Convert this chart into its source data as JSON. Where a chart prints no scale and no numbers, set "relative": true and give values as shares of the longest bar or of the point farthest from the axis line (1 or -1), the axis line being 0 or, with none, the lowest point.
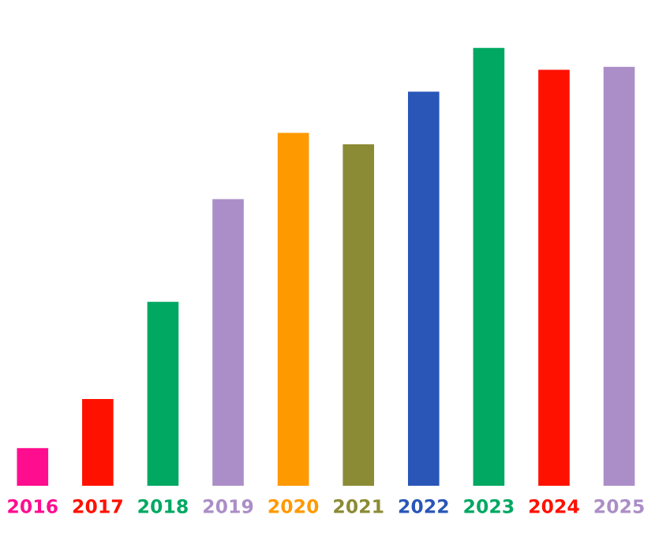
{
  "chart_data": {
    "type": "bar",
    "relative": true,
    "categories": [
      "2016",
      "2017",
      "2018",
      "2019",
      "2020",
      "2021",
      "2022",
      "2023",
      "2024",
      "2025"
    ],
    "values": [
      0.086,
      0.198,
      0.42,
      0.655,
      0.806,
      0.78,
      0.9,
      1,
      0.95,
      0.957
    ],
    "colors": [
      "#ff0d8f",
      "#ff1100",
      "#00a862",
      "#ab8ec7",
      "#ff9900",
      "#8b8b35",
      "#2a56b8",
      "#00a862",
      "#ff1100",
      "#ab8ec7"
    ],
    "grid": false,
    "legend": false
  }
}
